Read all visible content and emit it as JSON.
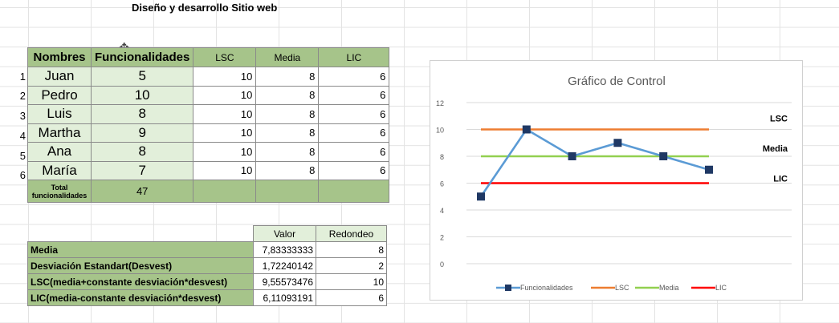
{
  "sheet_title": "Diseño y desarrollo Sitio web",
  "row_numbers": [
    "1",
    "2",
    "3",
    "4",
    "5",
    "6"
  ],
  "headers": {
    "nombres": "Nombres",
    "funcionalidades": "Funcionalidades",
    "lsc": "LSC",
    "media": "Media",
    "lic": "LIC"
  },
  "rows": [
    {
      "name": "Juan",
      "func": "5",
      "lsc": "10",
      "media": "8",
      "lic": "6"
    },
    {
      "name": "Pedro",
      "func": "10",
      "lsc": "10",
      "media": "8",
      "lic": "6"
    },
    {
      "name": "Luis",
      "func": "8",
      "lsc": "10",
      "media": "8",
      "lic": "6"
    },
    {
      "name": "Martha",
      "func": "9",
      "lsc": "10",
      "media": "8",
      "lic": "6"
    },
    {
      "name": "Ana",
      "func": "8",
      "lsc": "10",
      "media": "8",
      "lic": "6"
    },
    {
      "name": "María",
      "func": "7",
      "lsc": "10",
      "media": "8",
      "lic": "6"
    }
  ],
  "total": {
    "label_line1": "Total",
    "label_line2": "funcionalidades",
    "value": "47"
  },
  "stats": {
    "col_valor": "Valor",
    "col_redondeo": "Redondeo",
    "rows": [
      {
        "label": "Media",
        "valor": "7,83333333",
        "redondeo": "8"
      },
      {
        "label": "Desviación Estandart(Desvest)",
        "valor": "1,72240142",
        "redondeo": "2"
      },
      {
        "label": "LSC(media+constante desviación*desvest)",
        "valor": "9,55573476",
        "redondeo": "10"
      },
      {
        "label": "LIC(media-constante desviación*desvest)",
        "valor": "6,11093191",
        "redondeo": "6"
      }
    ]
  },
  "colors": {
    "header_green": "#a6c48a",
    "light_green": "#e2efda",
    "funcionalidades": "#5b9bd5",
    "lsc": "#ed7d31",
    "media": "#92d050",
    "lic": "#ff0000",
    "marker": "#1f3864"
  },
  "chart_data": {
    "type": "line",
    "title": "Gráfico de Control",
    "x": [
      1,
      2,
      3,
      4,
      5,
      6
    ],
    "ylim": [
      0,
      12
    ],
    "yticks": [
      "0",
      "2",
      "4",
      "6",
      "8",
      "10",
      "12"
    ],
    "grid": true,
    "legend_position": "bottom",
    "series": [
      {
        "name": "Funcionalidades",
        "values": [
          5,
          10,
          8,
          9,
          8,
          7
        ],
        "markers": true
      },
      {
        "name": "LSC",
        "values": [
          10,
          10,
          10,
          10,
          10,
          10
        ]
      },
      {
        "name": "Media",
        "values": [
          8,
          8,
          8,
          8,
          8,
          8
        ]
      },
      {
        "name": "LIC",
        "values": [
          6,
          6,
          6,
          6,
          6,
          6
        ]
      }
    ],
    "line_labels": [
      "LSC",
      "Media",
      "LIC"
    ]
  }
}
